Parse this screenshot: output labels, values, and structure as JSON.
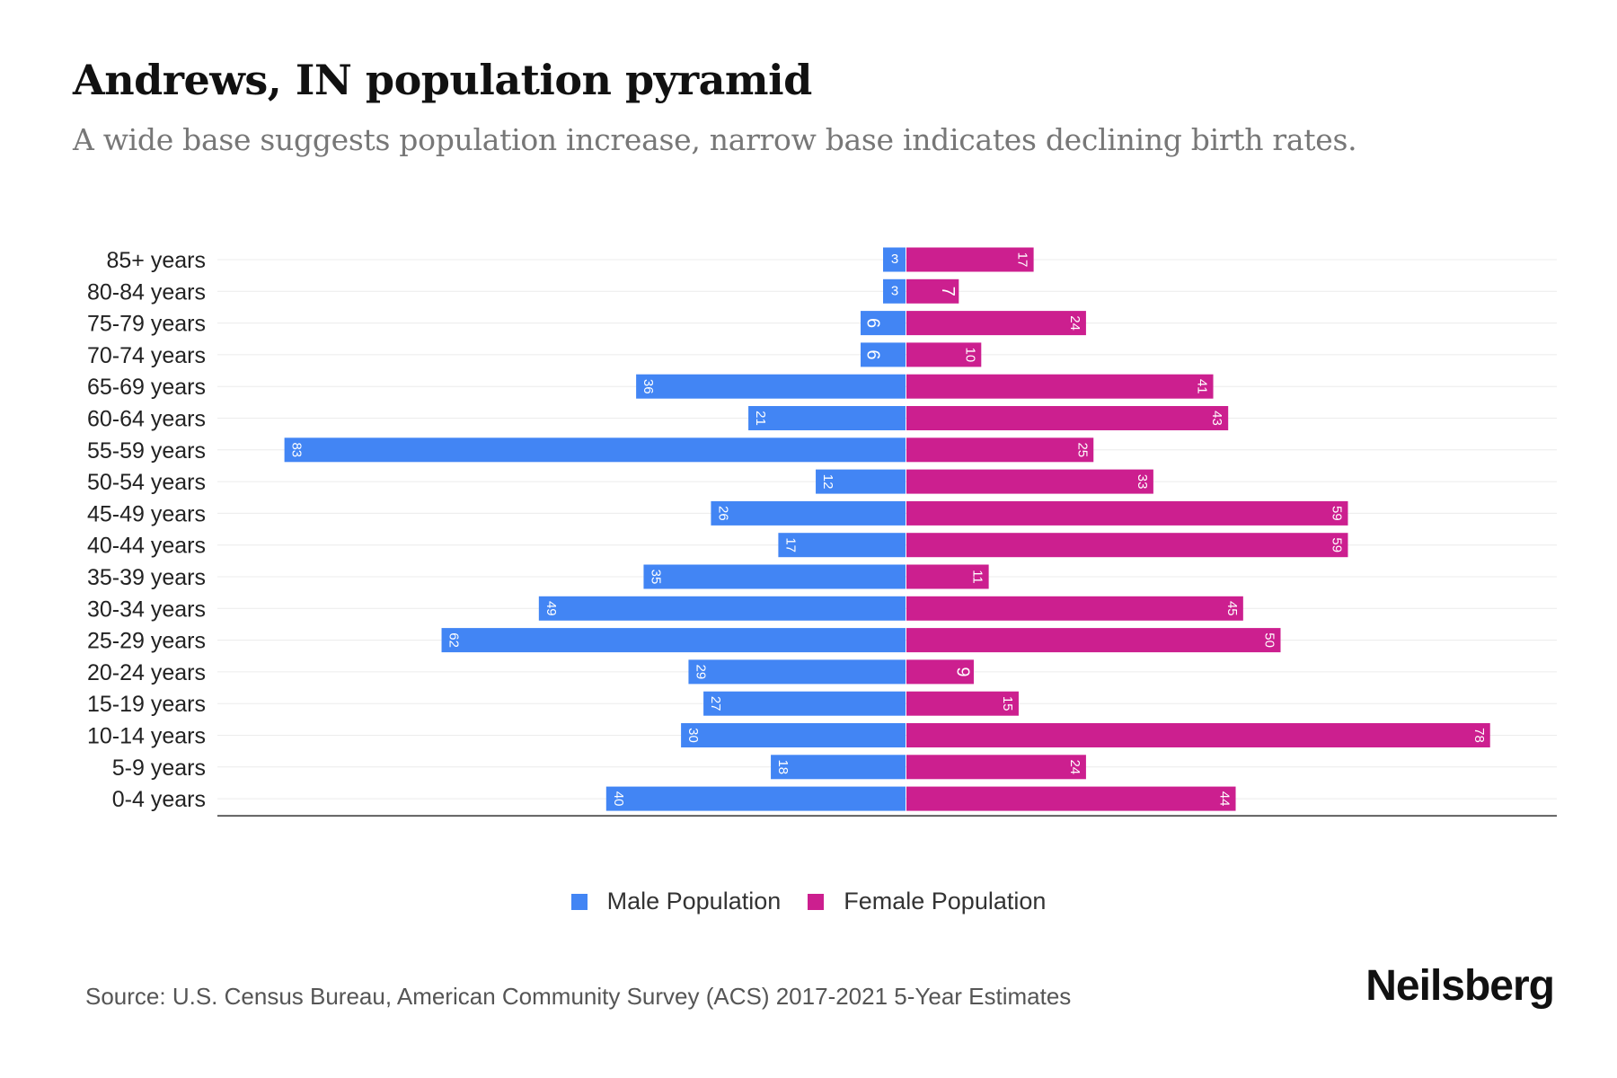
{
  "header": {
    "title": "Andrews, IN population pyramid",
    "subtitle": "A wide base suggests population increase, narrow base indicates declining birth rates."
  },
  "footer": {
    "source": "Source: U.S. Census Bureau, American Community Survey (ACS) 2017-2021 5-Year Estimates",
    "logo": "Neilsberg"
  },
  "colors": {
    "male": "#4285f4",
    "female": "#cc1f8f"
  },
  "chart_data": {
    "type": "bar",
    "orientation": "horizontal-diverging",
    "title": "Andrews, IN population pyramid",
    "subtitle": "A wide base suggests population increase, narrow base indicates declining birth rates.",
    "categories": [
      "85+ years",
      "80-84 years",
      "75-79 years",
      "70-74 years",
      "65-69 years",
      "60-64 years",
      "55-59 years",
      "50-54 years",
      "45-49 years",
      "40-44 years",
      "35-39 years",
      "30-34 years",
      "25-29 years",
      "20-24 years",
      "15-19 years",
      "10-14 years",
      "5-9 years",
      "0-4 years"
    ],
    "series": [
      {
        "name": "Male Population",
        "values": [
          3,
          3,
          6,
          6,
          36,
          21,
          83,
          12,
          26,
          17,
          35,
          49,
          62,
          29,
          27,
          30,
          18,
          40
        ]
      },
      {
        "name": "Female Population",
        "values": [
          17,
          7,
          24,
          10,
          41,
          43,
          25,
          33,
          59,
          59,
          11,
          45,
          50,
          9,
          15,
          78,
          24,
          44
        ]
      }
    ],
    "xlabel": "",
    "ylabel": "",
    "xlim": [
      -92,
      87
    ],
    "grid": true,
    "legend": "bottom-center"
  }
}
